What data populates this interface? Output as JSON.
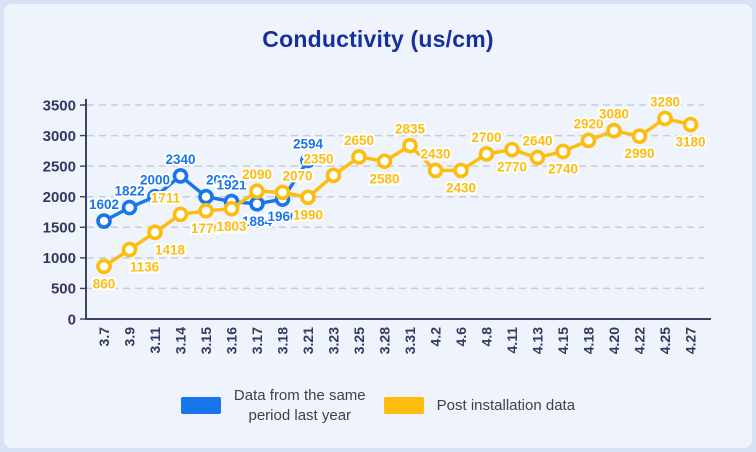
{
  "title": "Conductivity (us/cm)",
  "title_color": "#16309c",
  "legend": [
    {
      "label": "Data from the same period last year",
      "lines": [
        "Data from the same",
        "period last year"
      ],
      "color": "#1875ec"
    },
    {
      "label": "Post installation data",
      "lines": [
        "Post installation data",
        ""
      ],
      "color": "#fdbc0e"
    }
  ],
  "chart_data": {
    "type": "line",
    "title": "Conductivity (us/cm)",
    "x": [
      "3.7",
      "3.9",
      "3.11",
      "3.14",
      "3.15",
      "3.16",
      "3.17",
      "3.18",
      "3.21",
      "3.23",
      "3.25",
      "3.28",
      "3.31",
      "4.2",
      "4.6",
      "4.8",
      "4.11",
      "4.13",
      "4.15",
      "4.18",
      "4.20",
      "4.22",
      "4.25",
      "4.27"
    ],
    "series": [
      {
        "name": "Data from the same period last year",
        "color": "#1875ec",
        "values": [
          1602,
          1822,
          2000,
          2340,
          2000,
          1921,
          1884,
          1960,
          2594
        ],
        "label_side": [
          "above",
          "above",
          "above",
          "above",
          "above-right",
          "above",
          "below",
          "below",
          "above"
        ]
      },
      {
        "name": "Post installation data",
        "color": "#fdbc0e",
        "values": [
          860,
          1136,
          1418,
          1711,
          1770,
          1803,
          2090,
          2070,
          1990,
          2350,
          2650,
          2580,
          2835,
          2430,
          2430,
          2700,
          2770,
          2640,
          2740,
          2920,
          3080,
          2990,
          3280,
          3180
        ],
        "label_side": [
          "below",
          "below-right",
          "below-right",
          "above-left",
          "below",
          "below",
          "above",
          "above-right",
          "below",
          "above-left",
          "above",
          "below",
          "above",
          "above",
          "below",
          "above",
          "below",
          "above",
          "below",
          "above",
          "above",
          "below",
          "above",
          "below"
        ]
      }
    ],
    "ylim": [
      0,
      3500
    ],
    "yticks": [
      0,
      500,
      1000,
      1500,
      2000,
      2500,
      3000,
      3500
    ],
    "grid": "horizontal-dashed",
    "grid_color": "#c7cdda",
    "axis_color": "#3b4563",
    "tick_label_color": "#313a5e",
    "marker": "open-circle",
    "legend_position": "bottom",
    "xlabel": "",
    "ylabel": ""
  }
}
